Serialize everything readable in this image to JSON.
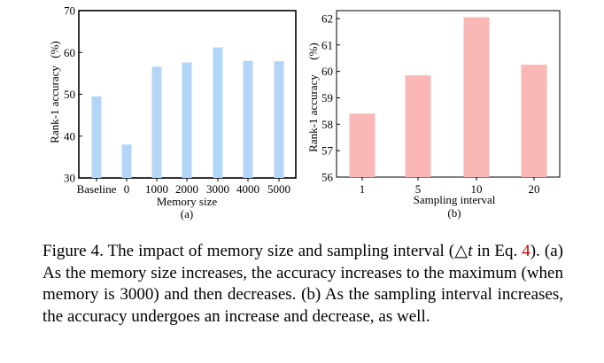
{
  "chart_data": [
    {
      "type": "bar",
      "categories": [
        "Baseline",
        "0",
        "1000",
        "2000",
        "3000",
        "4000",
        "5000"
      ],
      "values": [
        49.5,
        38,
        56.6,
        57.6,
        61.2,
        58,
        57.9
      ],
      "xlabel": "Memory size",
      "ylabel": "Rank-1 accuracy",
      "ylabel_unit": "(%)",
      "ylim": [
        30,
        70
      ],
      "yticks": [
        "30",
        "40",
        "50",
        "60",
        "70"
      ],
      "sub_label": "(a)",
      "grid": false,
      "bar_color": "#b3d5f8"
    },
    {
      "type": "bar",
      "categories": [
        "1",
        "5",
        "10",
        "20"
      ],
      "values": [
        58.4,
        59.85,
        62.05,
        60.25
      ],
      "xlabel": "Sampling interval",
      "ylabel": "Rank-1 accuracy",
      "ylabel_unit": "(%)",
      "ylim": [
        56,
        62.3
      ],
      "yticks": [
        "56",
        "57",
        "58",
        "59",
        "60",
        "61",
        "62"
      ],
      "sub_label": "(b)",
      "grid": false,
      "bar_color": "#fbb6b6"
    }
  ],
  "caption": {
    "part1": "Figure 4. The impact of memory size and sampling interval (△",
    "symbol_t": "t",
    "part2": " in Eq. ",
    "ref": "4",
    "part3": "). (a) As the memory size increases, the accuracy increases to the maximum (when memory is 3000) and then decreases. (b) As the sampling interval increases, the accuracy undergoes an increase and decrease, as well."
  },
  "colors": {
    "ref_link": "#d00000"
  }
}
